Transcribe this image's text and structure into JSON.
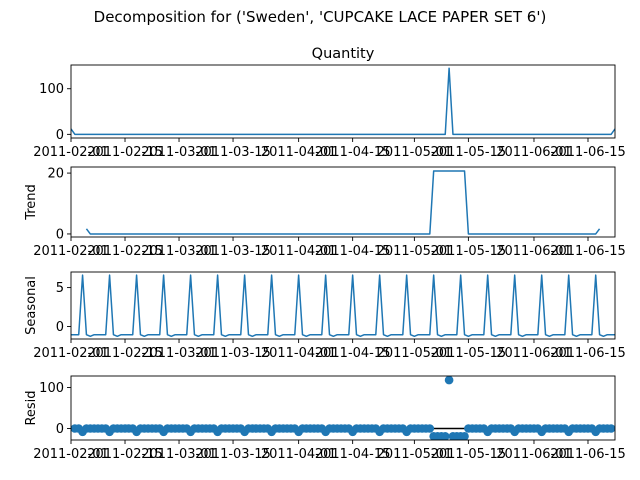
{
  "figure": {
    "suptitle": "Decomposition for ('Sweden', 'CUPCAKE LACE PAPER SET 6')",
    "date_ticks": [
      {
        "date": "2011-02-01",
        "label": "2011-02-01"
      },
      {
        "date": "2011-02-15",
        "label": "2011-02-15"
      },
      {
        "date": "2011-03-01",
        "label": "2011-03-01"
      },
      {
        "date": "2011-03-15",
        "label": "2011-03-15"
      },
      {
        "date": "2011-04-01",
        "label": "2011-04-01"
      },
      {
        "date": "2011-04-15",
        "label": "2011-04-15"
      },
      {
        "date": "2011-05-01",
        "label": "2011-05-01"
      },
      {
        "date": "2011-05-15",
        "label": "2011-05-15"
      },
      {
        "date": "2011-06-01",
        "label": "2011-06-01"
      },
      {
        "date": "2011-06-15",
        "label": "2011-06-15"
      }
    ]
  },
  "chart_data": [
    {
      "type": "line",
      "title": "Quantity",
      "ylabel": "",
      "xlim": [
        "2011-02-01",
        "2011-06-22"
      ],
      "ylim": [
        -8,
        152
      ],
      "yticks": [
        0,
        100
      ],
      "color": "#1f77b4",
      "points": [
        {
          "x": "2011-02-01",
          "y": 12
        },
        {
          "x": "2011-02-02",
          "y": 0
        },
        {
          "x": "2011-05-09",
          "y": 0
        },
        {
          "x": "2011-05-10",
          "y": 145
        },
        {
          "x": "2011-05-11",
          "y": 0
        },
        {
          "x": "2011-06-21",
          "y": 0
        },
        {
          "x": "2011-06-22",
          "y": 12
        }
      ]
    },
    {
      "type": "line",
      "title": "",
      "ylabel": "Trend",
      "xlim": [
        "2011-02-01",
        "2011-06-22"
      ],
      "ylim": [
        -1,
        22
      ],
      "yticks": [
        0,
        20
      ],
      "color": "#1f77b4",
      "points": [
        {
          "x": "2011-02-05",
          "y": 1.7
        },
        {
          "x": "2011-02-06",
          "y": 0
        },
        {
          "x": "2011-05-05",
          "y": 0
        },
        {
          "x": "2011-05-06",
          "y": 20.7
        },
        {
          "x": "2011-05-14",
          "y": 20.7
        },
        {
          "x": "2011-05-15",
          "y": 0
        },
        {
          "x": "2011-06-17",
          "y": 0
        },
        {
          "x": "2011-06-18",
          "y": 1.7
        }
      ]
    },
    {
      "type": "line",
      "title": "",
      "ylabel": "Seasonal",
      "xlim": [
        "2011-02-01",
        "2011-06-22"
      ],
      "ylim": [
        -1.6,
        7.0
      ],
      "yticks": [
        0,
        5
      ],
      "color": "#1f77b4",
      "period_days": 7,
      "peak_offset_days": 3,
      "peak_value": 6.6,
      "base_value": -1.05,
      "base_dip": -1.25
    },
    {
      "type": "scatter",
      "title": "",
      "ylabel": "Resid",
      "xlim": [
        "2011-02-01",
        "2011-06-22"
      ],
      "ylim": [
        -28,
        128
      ],
      "yticks": [
        0,
        100
      ],
      "color": "#1f77b4",
      "zero_line": true,
      "outlier": {
        "x": "2011-05-10",
        "y": 118
      },
      "negative_run": {
        "start": "2011-05-06",
        "end": "2011-05-14",
        "y": -19
      },
      "baseline_value": 0,
      "dip_value": -8,
      "dip_period_days": 7,
      "dip_offset_days": 3
    }
  ]
}
